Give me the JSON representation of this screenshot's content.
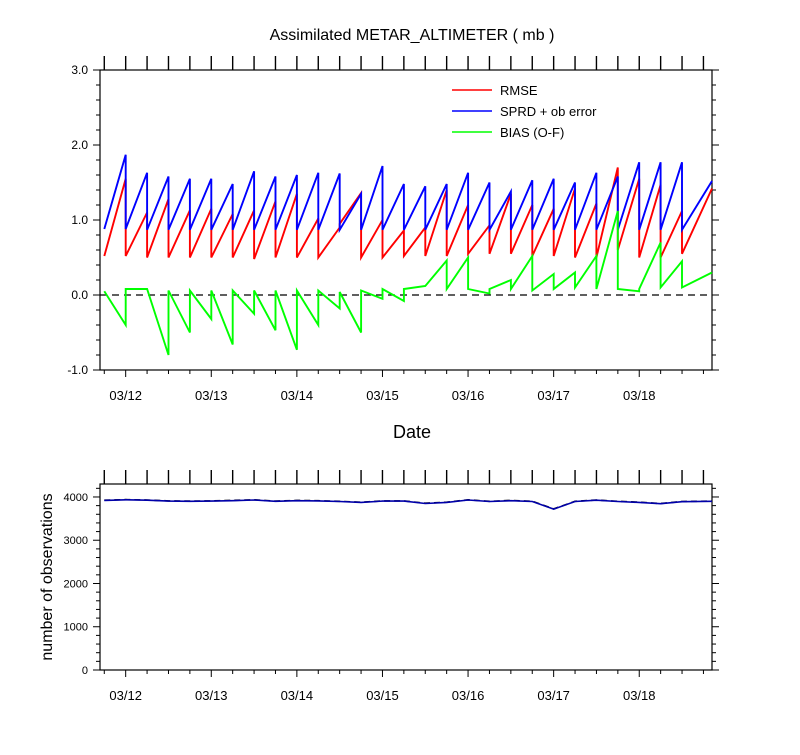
{
  "chart_data": [
    {
      "type": "line",
      "title": "Assimilated METAR_ALTIMETER ( mb )",
      "xlabel": "Date",
      "ylabel": "",
      "ylim": [
        -1.0,
        3.0
      ],
      "yticks": [
        -1.0,
        0.0,
        1.0,
        2.0,
        3.0
      ],
      "ytick_labels": [
        "-1.0",
        "0.0",
        "1.0",
        "2.0",
        "3.0"
      ],
      "xlim": [
        11.7,
        18.85
      ],
      "xticks": [
        12,
        13,
        14,
        15,
        16,
        17,
        18
      ],
      "xtick_labels": [
        "03/12",
        "03/13",
        "03/14",
        "03/15",
        "03/16",
        "03/17",
        "03/18"
      ],
      "reference_line": {
        "y": 0.0,
        "style": "dashed"
      },
      "legend_position": "top-right",
      "series": [
        {
          "name": "RMSE",
          "color": "#ff0000",
          "points": [
            [
              11.75,
              0.52
            ],
            [
              12.0,
              1.55
            ],
            [
              12.0,
              0.52
            ],
            [
              12.25,
              1.1
            ],
            [
              12.25,
              0.5
            ],
            [
              12.5,
              1.28
            ],
            [
              12.5,
              0.5
            ],
            [
              12.75,
              1.13
            ],
            [
              12.75,
              0.5
            ],
            [
              13.0,
              1.15
            ],
            [
              13.0,
              0.5
            ],
            [
              13.25,
              1.08
            ],
            [
              13.25,
              0.5
            ],
            [
              13.5,
              1.13
            ],
            [
              13.5,
              0.48
            ],
            [
              13.75,
              1.25
            ],
            [
              13.75,
              0.5
            ],
            [
              14.0,
              1.35
            ],
            [
              14.0,
              0.5
            ],
            [
              14.25,
              1.02
            ],
            [
              14.25,
              0.5
            ],
            [
              14.5,
              0.9
            ],
            [
              14.5,
              0.95
            ],
            [
              14.75,
              1.36
            ],
            [
              14.75,
              0.5
            ],
            [
              15.0,
              1.0
            ],
            [
              15.0,
              0.5
            ],
            [
              15.25,
              0.86
            ],
            [
              15.25,
              0.52
            ],
            [
              15.5,
              0.9
            ],
            [
              15.5,
              0.52
            ],
            [
              15.75,
              1.4
            ],
            [
              15.75,
              0.52
            ],
            [
              16.0,
              1.2
            ],
            [
              16.0,
              0.55
            ],
            [
              16.25,
              0.93
            ],
            [
              16.25,
              0.55
            ],
            [
              16.5,
              1.35
            ],
            [
              16.5,
              0.55
            ],
            [
              16.75,
              1.2
            ],
            [
              16.75,
              0.52
            ],
            [
              17.0,
              1.15
            ],
            [
              17.0,
              0.52
            ],
            [
              17.25,
              1.42
            ],
            [
              17.25,
              0.5
            ],
            [
              17.5,
              1.22
            ],
            [
              17.5,
              0.5
            ],
            [
              17.75,
              1.7
            ],
            [
              17.75,
              0.6
            ],
            [
              18.0,
              1.55
            ],
            [
              18.0,
              0.5
            ],
            [
              18.25,
              1.47
            ],
            [
              18.25,
              0.5
            ],
            [
              18.5,
              1.12
            ],
            [
              18.5,
              0.55
            ],
            [
              18.85,
              1.42
            ]
          ]
        },
        {
          "name": "SPRD + ob error",
          "color": "#0000ff",
          "points": [
            [
              11.75,
              0.88
            ],
            [
              12.0,
              1.87
            ],
            [
              12.0,
              0.88
            ],
            [
              12.25,
              1.63
            ],
            [
              12.25,
              0.87
            ],
            [
              12.5,
              1.58
            ],
            [
              12.5,
              0.87
            ],
            [
              12.75,
              1.55
            ],
            [
              12.75,
              0.87
            ],
            [
              13.0,
              1.55
            ],
            [
              13.0,
              0.87
            ],
            [
              13.25,
              1.48
            ],
            [
              13.25,
              0.87
            ],
            [
              13.5,
              1.65
            ],
            [
              13.5,
              0.87
            ],
            [
              13.75,
              1.58
            ],
            [
              13.75,
              0.87
            ],
            [
              14.0,
              1.6
            ],
            [
              14.0,
              0.87
            ],
            [
              14.25,
              1.63
            ],
            [
              14.25,
              0.87
            ],
            [
              14.5,
              1.62
            ],
            [
              14.5,
              0.87
            ],
            [
              14.75,
              1.35
            ],
            [
              14.75,
              0.87
            ],
            [
              15.0,
              1.72
            ],
            [
              15.0,
              0.87
            ],
            [
              15.25,
              1.48
            ],
            [
              15.25,
              0.87
            ],
            [
              15.5,
              1.45
            ],
            [
              15.5,
              0.87
            ],
            [
              15.75,
              1.48
            ],
            [
              15.75,
              0.87
            ],
            [
              16.0,
              1.63
            ],
            [
              16.0,
              0.87
            ],
            [
              16.25,
              1.5
            ],
            [
              16.25,
              0.87
            ],
            [
              16.5,
              1.38
            ],
            [
              16.5,
              0.87
            ],
            [
              16.75,
              1.53
            ],
            [
              16.75,
              0.87
            ],
            [
              17.0,
              1.55
            ],
            [
              17.0,
              0.87
            ],
            [
              17.25,
              1.5
            ],
            [
              17.25,
              0.87
            ],
            [
              17.5,
              1.63
            ],
            [
              17.5,
              0.87
            ],
            [
              17.75,
              1.58
            ],
            [
              17.75,
              0.87
            ],
            [
              18.0,
              1.77
            ],
            [
              18.0,
              0.87
            ],
            [
              18.25,
              1.77
            ],
            [
              18.25,
              0.87
            ],
            [
              18.5,
              1.77
            ],
            [
              18.5,
              0.87
            ],
            [
              18.85,
              1.52
            ]
          ]
        },
        {
          "name": "BIAS (O-F)",
          "color": "#00ff00",
          "points": [
            [
              11.75,
              0.05
            ],
            [
              12.0,
              -0.4
            ],
            [
              12.0,
              0.08
            ],
            [
              12.25,
              0.08
            ],
            [
              12.5,
              -0.8
            ],
            [
              12.5,
              0.06
            ],
            [
              12.75,
              -0.5
            ],
            [
              12.75,
              0.06
            ],
            [
              13.0,
              -0.32
            ],
            [
              13.0,
              0.06
            ],
            [
              13.25,
              -0.66
            ],
            [
              13.25,
              0.06
            ],
            [
              13.5,
              -0.25
            ],
            [
              13.5,
              0.06
            ],
            [
              13.75,
              -0.47
            ],
            [
              13.75,
              0.06
            ],
            [
              14.0,
              -0.73
            ],
            [
              14.0,
              0.06
            ],
            [
              14.25,
              -0.4
            ],
            [
              14.25,
              0.06
            ],
            [
              14.5,
              -0.18
            ],
            [
              14.5,
              0.04
            ],
            [
              14.75,
              -0.5
            ],
            [
              14.75,
              0.06
            ],
            [
              15.0,
              -0.05
            ],
            [
              15.0,
              0.08
            ],
            [
              15.25,
              -0.08
            ],
            [
              15.25,
              0.08
            ],
            [
              15.5,
              0.12
            ],
            [
              15.75,
              0.46
            ],
            [
              15.75,
              0.08
            ],
            [
              16.0,
              0.5
            ],
            [
              16.0,
              0.08
            ],
            [
              16.25,
              0.02
            ],
            [
              16.25,
              0.08
            ],
            [
              16.5,
              0.2
            ],
            [
              16.5,
              0.08
            ],
            [
              16.75,
              0.52
            ],
            [
              16.75,
              0.06
            ],
            [
              17.0,
              0.28
            ],
            [
              17.0,
              0.08
            ],
            [
              17.25,
              0.3
            ],
            [
              17.25,
              0.1
            ],
            [
              17.5,
              0.52
            ],
            [
              17.5,
              0.08
            ],
            [
              17.75,
              1.12
            ],
            [
              17.75,
              0.08
            ],
            [
              18.0,
              0.05
            ],
            [
              18.0,
              0.08
            ],
            [
              18.25,
              0.7
            ],
            [
              18.25,
              0.1
            ],
            [
              18.5,
              0.45
            ],
            [
              18.5,
              0.1
            ],
            [
              18.85,
              0.3
            ]
          ]
        }
      ]
    },
    {
      "type": "line",
      "title": "",
      "xlabel": "",
      "ylabel": "number of observations",
      "ylim": [
        0,
        4300
      ],
      "yticks": [
        0,
        1000,
        2000,
        3000,
        4000
      ],
      "ytick_labels": [
        "0",
        "1000",
        "2000",
        "3000",
        "4000"
      ],
      "xlim": [
        11.7,
        18.85
      ],
      "xticks": [
        12,
        13,
        14,
        15,
        16,
        17,
        18
      ],
      "xtick_labels": [
        "03/12",
        "03/13",
        "03/14",
        "03/15",
        "03/16",
        "03/17",
        "03/18"
      ],
      "series": [
        {
          "color": "#000000",
          "style": "dashed",
          "points": [
            [
              11.75,
              3925
            ],
            [
              12.0,
              3940
            ],
            [
              12.25,
              3930
            ],
            [
              12.5,
              3910
            ],
            [
              12.75,
              3905
            ],
            [
              13.0,
              3910
            ],
            [
              13.25,
              3920
            ],
            [
              13.5,
              3935
            ],
            [
              13.75,
              3905
            ],
            [
              14.0,
              3920
            ],
            [
              14.25,
              3915
            ],
            [
              14.5,
              3900
            ],
            [
              14.75,
              3880
            ],
            [
              15.0,
              3910
            ],
            [
              15.25,
              3910
            ],
            [
              15.5,
              3855
            ],
            [
              15.75,
              3880
            ],
            [
              16.0,
              3935
            ],
            [
              16.25,
              3900
            ],
            [
              16.5,
              3920
            ],
            [
              16.75,
              3900
            ],
            [
              17.0,
              3725
            ],
            [
              17.25,
              3900
            ],
            [
              17.5,
              3930
            ],
            [
              17.75,
              3900
            ],
            [
              18.0,
              3880
            ],
            [
              18.25,
              3850
            ],
            [
              18.5,
              3895
            ],
            [
              18.85,
              3905
            ]
          ]
        },
        {
          "color": "#0000aa",
          "style": "solid",
          "points": [
            [
              11.75,
              3920
            ],
            [
              12.0,
              3935
            ],
            [
              12.25,
              3925
            ],
            [
              12.5,
              3905
            ],
            [
              12.75,
              3900
            ],
            [
              13.0,
              3905
            ],
            [
              13.25,
              3915
            ],
            [
              13.5,
              3930
            ],
            [
              13.75,
              3900
            ],
            [
              14.0,
              3915
            ],
            [
              14.25,
              3910
            ],
            [
              14.5,
              3895
            ],
            [
              14.75,
              3875
            ],
            [
              15.0,
              3905
            ],
            [
              15.25,
              3905
            ],
            [
              15.5,
              3850
            ],
            [
              15.75,
              3875
            ],
            [
              16.0,
              3930
            ],
            [
              16.25,
              3895
            ],
            [
              16.5,
              3915
            ],
            [
              16.75,
              3895
            ],
            [
              17.0,
              3720
            ],
            [
              17.25,
              3895
            ],
            [
              17.5,
              3925
            ],
            [
              17.75,
              3895
            ],
            [
              18.0,
              3875
            ],
            [
              18.25,
              3845
            ],
            [
              18.5,
              3890
            ],
            [
              18.85,
              3900
            ]
          ]
        }
      ]
    }
  ]
}
